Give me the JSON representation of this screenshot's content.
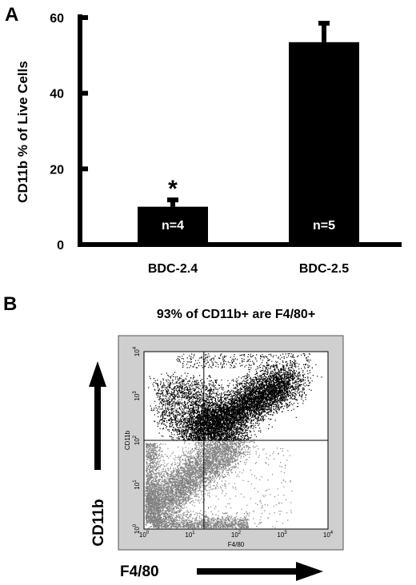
{
  "panel_a": {
    "label": "A",
    "chart_data": {
      "type": "bar",
      "categories": [
        "BDC-2.4",
        "BDC-2.5"
      ],
      "values": [
        10,
        53.5
      ],
      "errors": [
        1.8,
        5
      ],
      "bar_labels": [
        "n=4",
        "n=5"
      ],
      "significance_mark": [
        "*",
        ""
      ],
      "ylabel": "CD11b % of Live Cells",
      "ylim": [
        0,
        60
      ],
      "yticks": [
        "0",
        "20",
        "40",
        "60"
      ],
      "ytick_values": [
        0,
        20,
        40,
        60
      ],
      "bar_color": "#000000"
    }
  },
  "panel_b": {
    "label": "B",
    "title": "93% of CD11b+ are F4/80+",
    "chart_data": {
      "type": "scatter",
      "xscale": "log",
      "yscale": "log",
      "xlim": [
        1,
        10000
      ],
      "ylim": [
        1,
        10000
      ],
      "xlabel_inner": "F4/80",
      "ylabel_inner": "CD11b",
      "xlabel_outer": "F4/80",
      "ylabel_outer": "CD11b",
      "quadrant_gate": {
        "x": 20,
        "y": 100
      },
      "xtick_bases": [
        "10",
        "10",
        "10",
        "10",
        "10"
      ],
      "xtick_exps": [
        "0",
        "1",
        "2",
        "3",
        "4"
      ],
      "ytick_bases": [
        "10",
        "10",
        "10",
        "10",
        "10"
      ],
      "ytick_exps": [
        "0",
        "1",
        "2",
        "3",
        "4"
      ],
      "populations": [
        {
          "gate": "CD11b+",
          "color": "#000000"
        },
        {
          "gate": "CD11b-",
          "color": "#808080"
        }
      ],
      "background_color": "#cfcfcf"
    }
  }
}
